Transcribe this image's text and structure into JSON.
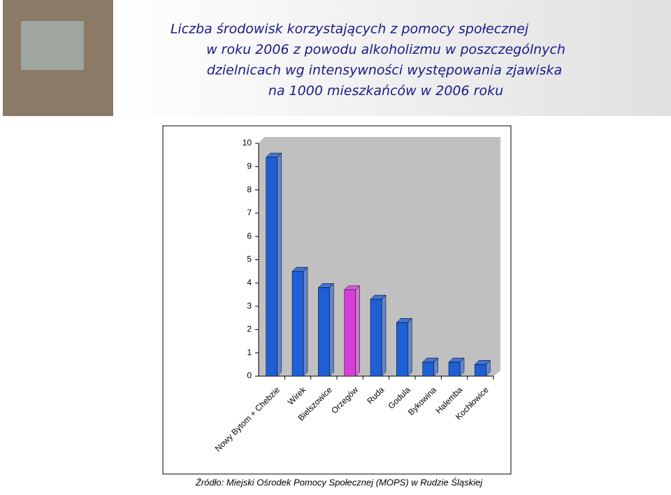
{
  "chart_data": {
    "type": "bar",
    "title": [
      "Liczba środowisk korzystających z pomocy społecznej",
      "w roku 2006 z powodu alkoholizmu w poszczególnych",
      "dzielnicach wg intensywności występowania zjawiska",
      "na 1000 mieszkańców w 2006 roku"
    ],
    "categories": [
      "Nowy Bytom + Chebzie",
      "Wirek",
      "Bielszowice",
      "Orzegów",
      "Ruda",
      "Godula",
      "Bykowina",
      "Halemba",
      "Kochłowice"
    ],
    "values": [
      9.4,
      4.5,
      3.8,
      3.7,
      3.3,
      2.3,
      0.6,
      0.6,
      0.5
    ],
    "colors": [
      "#1f5fd6",
      "#1f5fd6",
      "#1f5fd6",
      "#d83fd8",
      "#1f5fd6",
      "#1f5fd6",
      "#1f5fd6",
      "#1f5fd6",
      "#1f5fd6"
    ],
    "ylim": [
      0,
      10
    ],
    "yticks": [
      0,
      1,
      2,
      3,
      4,
      5,
      6,
      7,
      8,
      9,
      10
    ],
    "source": "Źródło: Miejski Ośrodek Pomocy Społecznej (MOPS) w Rudzie Śląskiej"
  }
}
